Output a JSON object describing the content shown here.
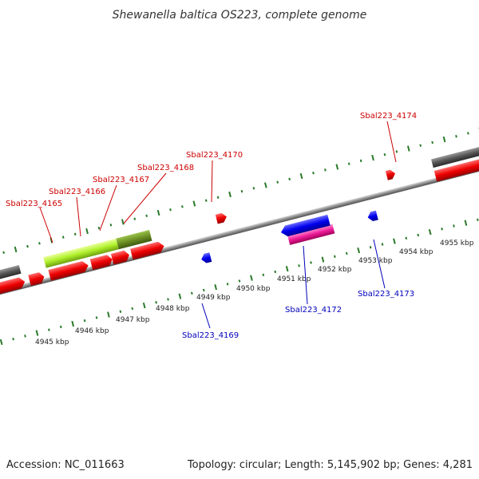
{
  "title": "Shewanella baltica OS223, complete genome",
  "footer": {
    "accession": "Accession: NC_011663",
    "topology": "Topology: circular; Length: 5,145,902 bp; Genes: 4,281"
  },
  "colors": {
    "forward_label": "#cc0000",
    "reverse_label": "#0000bb",
    "tick": "#2a7a2a",
    "backbone": "#888888"
  },
  "kbp_labels": [
    "4945 kbp",
    "4946 kbp",
    "4947 kbp",
    "4948 kbp",
    "4949 kbp",
    "4950 kbp",
    "4951 kbp",
    "4952 kbp",
    "4953 kbp",
    "4954 kbp",
    "4955 kbp"
  ],
  "forward_labels": [
    "Sbal223_4165",
    "Sbal223_4166",
    "Sbal223_4167",
    "Sbal223_4168",
    "Sbal223_4170",
    "Sbal223_4174"
  ],
  "reverse_labels": [
    "Sbal223_4169",
    "Sbal223_4172",
    "Sbal223_4173"
  ]
}
